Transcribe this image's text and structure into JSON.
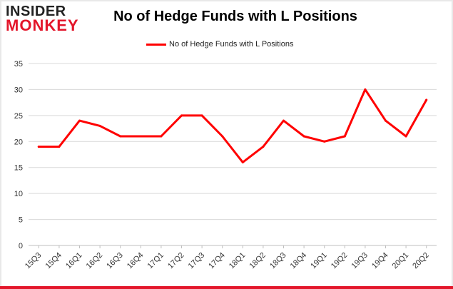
{
  "logo": {
    "line1": "INSIDER",
    "line2": "MONKEY"
  },
  "chart_data": {
    "type": "line",
    "title": "No of Hedge Funds with L Positions",
    "legend": {
      "position": "top-center"
    },
    "categories": [
      "15Q3",
      "15Q4",
      "16Q1",
      "16Q2",
      "16Q3",
      "16Q4",
      "17Q1",
      "17Q2",
      "17Q3",
      "17Q4",
      "18Q1",
      "18Q2",
      "18Q3",
      "18Q4",
      "19Q1",
      "19Q2",
      "19Q3",
      "19Q4",
      "20Q1",
      "20Q2"
    ],
    "series": [
      {
        "name": "No of Hedge Funds with L Positions",
        "color": "#ff0000",
        "values": [
          19,
          19,
          24,
          23,
          21,
          21,
          21,
          25,
          25,
          21,
          16,
          19,
          24,
          21,
          20,
          21,
          30,
          24,
          21,
          28
        ]
      }
    ],
    "ylim": [
      0,
      35
    ],
    "yticks": [
      0,
      5,
      10,
      15,
      20,
      25,
      30,
      35
    ],
    "grid": true,
    "gridColor": "#d9d9d9",
    "xlabel": "",
    "ylabel": ""
  }
}
